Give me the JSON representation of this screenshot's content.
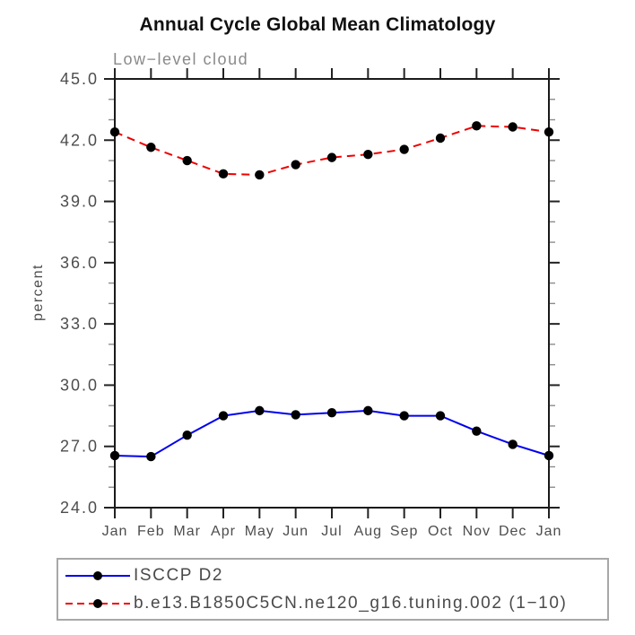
{
  "chart_data": {
    "type": "line",
    "title": "Annual Cycle Global Mean Climatology",
    "subtitle": "Low−level cloud",
    "xlabel": "",
    "ylabel": "percent",
    "x_categories": [
      "Jan",
      "Feb",
      "Mar",
      "Apr",
      "May",
      "Jun",
      "Jul",
      "Aug",
      "Sep",
      "Oct",
      "Nov",
      "Dec",
      "Jan"
    ],
    "ylim": [
      24.0,
      45.0
    ],
    "y_major_step": 3.0,
    "y_minor_step": 1.0,
    "y_tick_format": "one-decimal",
    "grid": false,
    "legend_position": "bottom-left-box",
    "series": [
      {
        "name": "ISCCP D2",
        "color": "#0000ee",
        "line_style": "solid",
        "marker": "filled-circle",
        "marker_color": "#000000",
        "values": [
          26.55,
          26.5,
          27.55,
          28.5,
          28.75,
          28.55,
          28.65,
          28.75,
          28.5,
          28.5,
          27.75,
          27.1,
          26.55
        ]
      },
      {
        "name": "b.e13.B1850C5CN.ne120_g16.tuning.002 (1−10)",
        "color": "#ee0000",
        "line_style": "dashed",
        "marker": "filled-circle",
        "marker_color": "#000000",
        "values": [
          42.4,
          41.65,
          41.0,
          40.35,
          40.3,
          40.8,
          41.15,
          41.3,
          41.55,
          42.1,
          42.7,
          42.65,
          42.4
        ]
      }
    ]
  },
  "colors": {
    "spine": "#1a1a1a",
    "major_tick": "#222222",
    "minor_tick": "#8c8c8c",
    "tick_label": "#4d4d4d",
    "subtitle": "#8a8a8a",
    "legend_border": "#a8a8a8"
  }
}
